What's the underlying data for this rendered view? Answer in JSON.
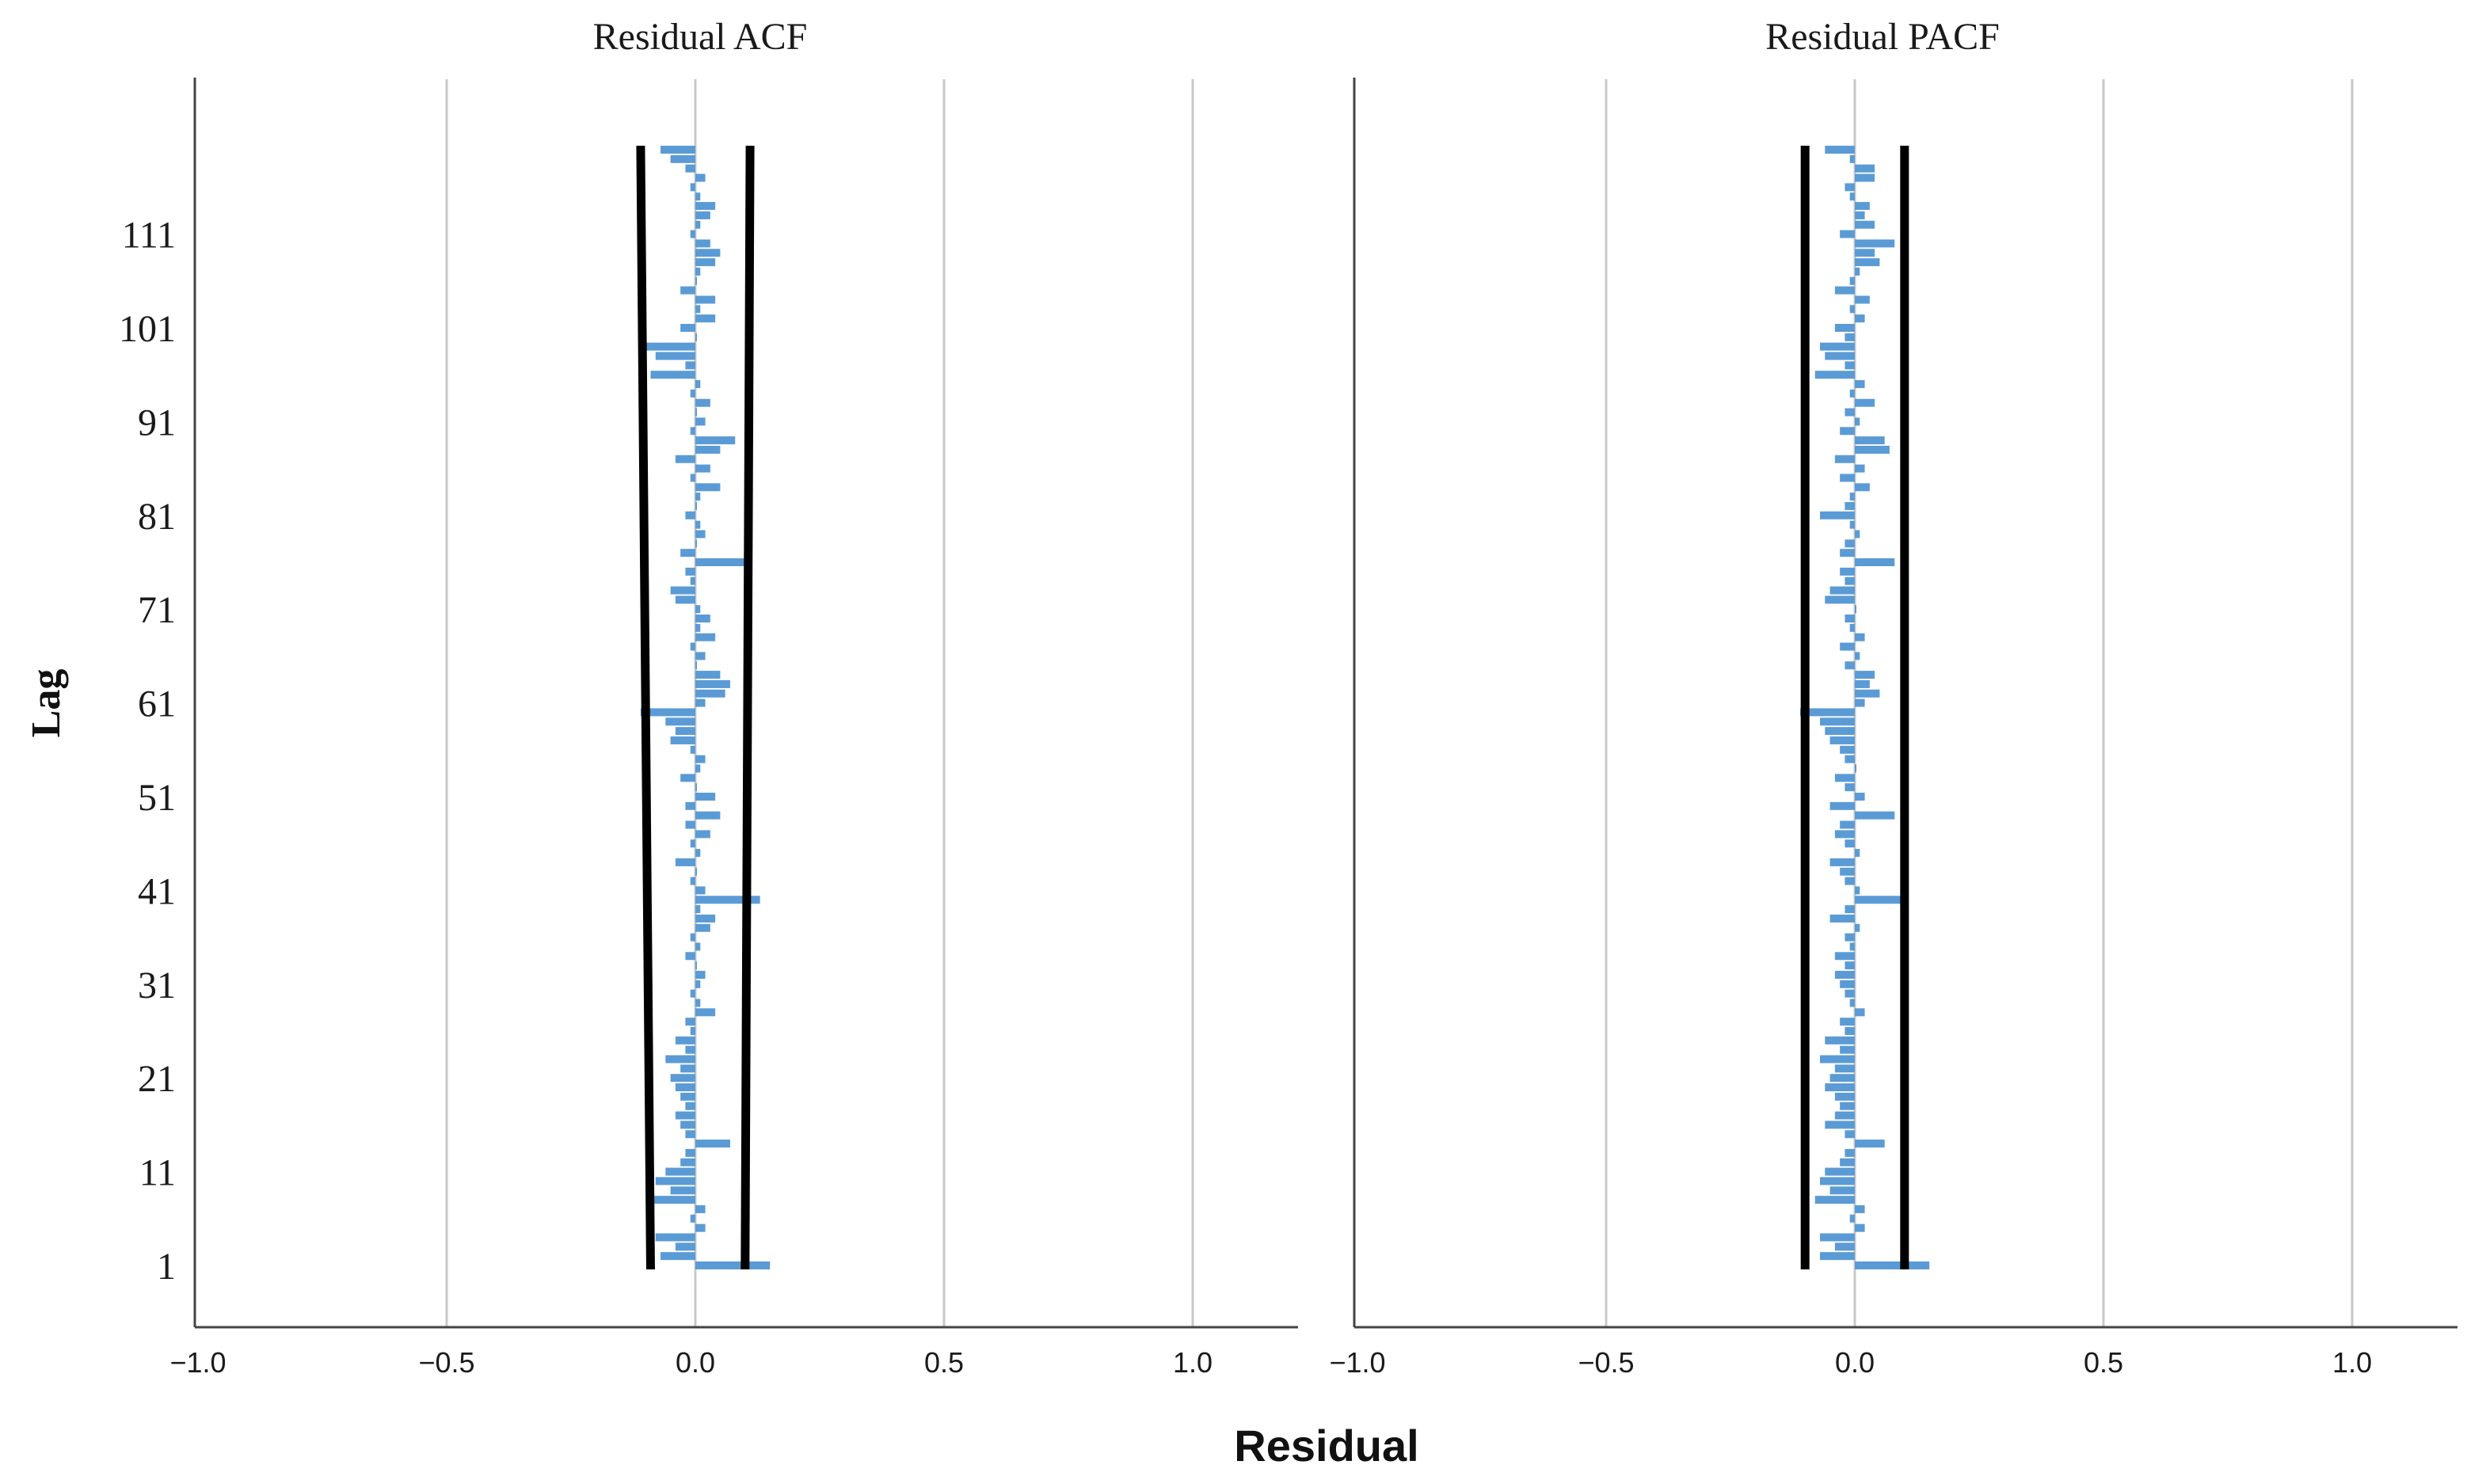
{
  "chart_data": {
    "type": "bar",
    "orientation": "horizontal",
    "xlabel": "Residual",
    "ylabel": "Lag",
    "xlim": [
      -1.0,
      1.0
    ],
    "x_ticks": [
      "-1.0",
      "-0.5",
      "0.0",
      "0.5",
      "1.0"
    ],
    "y_ticks": [
      "1",
      "11",
      "21",
      "31",
      "41",
      "51",
      "61",
      "71",
      "81",
      "91",
      "101",
      "111"
    ],
    "lag_range": [
      1,
      120
    ],
    "bar_color": "#5b9bd5",
    "grid": "vertical",
    "panels": [
      {
        "title": "Residual ACF",
        "confidence_limits": {
          "upper": [
            0.1,
            0.11
          ],
          "lower": [
            -0.09,
            -0.11
          ]
        },
        "values": [
          0.15,
          -0.07,
          -0.04,
          -0.08,
          0.02,
          -0.01,
          0.02,
          -0.09,
          -0.05,
          -0.08,
          -0.06,
          -0.03,
          -0.02,
          0.07,
          -0.02,
          -0.03,
          -0.04,
          -0.02,
          -0.03,
          -0.04,
          -0.05,
          -0.03,
          -0.06,
          -0.02,
          -0.04,
          -0.01,
          -0.02,
          0.04,
          0.01,
          -0.01,
          0.01,
          0.02,
          0.0,
          -0.02,
          0.01,
          -0.01,
          0.03,
          0.04,
          0.01,
          0.13,
          0.02,
          -0.01,
          0.0,
          -0.04,
          0.01,
          -0.01,
          0.03,
          -0.02,
          0.05,
          -0.02,
          0.04,
          0.0,
          -0.03,
          0.01,
          0.02,
          -0.01,
          -0.05,
          -0.04,
          -0.06,
          -0.11,
          0.02,
          0.06,
          0.07,
          0.05,
          0.0,
          0.02,
          -0.01,
          0.04,
          0.01,
          0.03,
          0.01,
          -0.04,
          -0.05,
          -0.01,
          -0.02,
          0.1,
          -0.03,
          0.0,
          0.02,
          0.01,
          -0.02,
          0.0,
          0.01,
          0.05,
          -0.01,
          0.03,
          -0.04,
          0.05,
          0.08,
          -0.01,
          0.02,
          0.0,
          0.03,
          -0.01,
          0.01,
          -0.09,
          -0.02,
          -0.08,
          -0.1,
          0.0,
          -0.03,
          0.04,
          0.01,
          0.04,
          -0.03,
          0.0,
          0.01,
          0.04,
          0.05,
          0.03,
          -0.01,
          0.01,
          0.03,
          0.04,
          0.01,
          -0.01,
          0.02,
          -0.02,
          -0.05,
          -0.07
        ]
      },
      {
        "title": "Residual PACF",
        "confidence_limits": {
          "upper": [
            0.1,
            0.1
          ],
          "lower": [
            -0.1,
            -0.1
          ]
        },
        "values": [
          0.15,
          -0.07,
          -0.04,
          -0.07,
          0.02,
          -0.01,
          0.02,
          -0.08,
          -0.05,
          -0.07,
          -0.06,
          -0.03,
          -0.02,
          0.06,
          -0.02,
          -0.06,
          -0.04,
          -0.03,
          -0.04,
          -0.06,
          -0.05,
          -0.04,
          -0.07,
          -0.03,
          -0.06,
          -0.02,
          -0.03,
          0.02,
          -0.01,
          -0.02,
          -0.03,
          -0.04,
          -0.02,
          -0.04,
          -0.01,
          -0.02,
          0.01,
          -0.05,
          -0.02,
          0.1,
          0.01,
          -0.02,
          -0.03,
          -0.05,
          0.01,
          -0.02,
          -0.04,
          -0.03,
          0.08,
          -0.05,
          0.02,
          -0.02,
          -0.04,
          0.0,
          -0.02,
          -0.03,
          -0.05,
          -0.06,
          -0.07,
          -0.11,
          0.02,
          0.05,
          0.03,
          0.04,
          -0.02,
          0.01,
          -0.03,
          0.02,
          -0.01,
          -0.02,
          0.0,
          -0.06,
          -0.05,
          -0.02,
          -0.03,
          0.08,
          -0.03,
          -0.02,
          0.01,
          -0.01,
          -0.07,
          -0.02,
          -0.01,
          0.03,
          -0.03,
          0.02,
          -0.04,
          0.07,
          0.06,
          -0.03,
          0.01,
          -0.02,
          0.04,
          -0.01,
          0.02,
          -0.08,
          -0.02,
          -0.06,
          -0.07,
          -0.02,
          -0.04,
          0.02,
          -0.01,
          0.03,
          -0.04,
          -0.01,
          0.01,
          0.05,
          0.04,
          0.08,
          -0.03,
          0.04,
          0.02,
          0.03,
          -0.01,
          -0.02,
          0.04,
          0.04,
          -0.01,
          -0.06
        ]
      }
    ]
  }
}
